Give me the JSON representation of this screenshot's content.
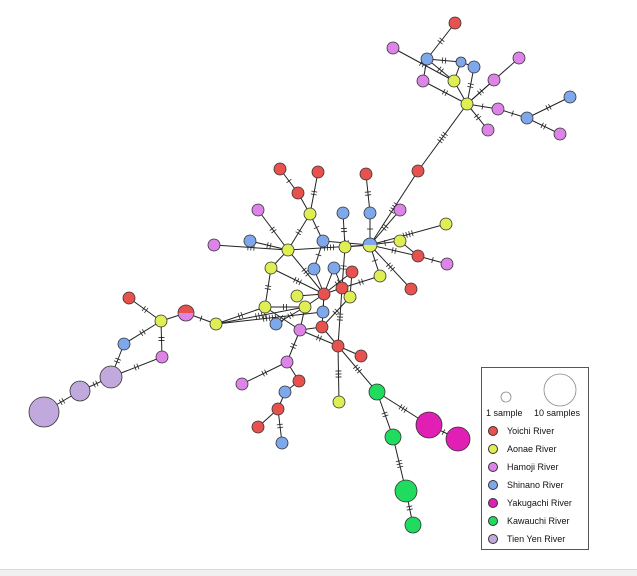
{
  "colors": {
    "yoichi": "#e8524e",
    "aonae": "#dfee53",
    "hamoji": "#de84e8",
    "shinano": "#7ea7ec",
    "yakugachi": "#e21fb4",
    "kawauchi": "#1fdc5f",
    "tienyen": "#c1a9dd"
  },
  "legend": {
    "size_small_label": "1 sample",
    "size_large_label": "10 samples",
    "entries": [
      {
        "label": "Yoichi River",
        "color": "#e8524e"
      },
      {
        "label": "Aonae River",
        "color": "#dfee53"
      },
      {
        "label": "Hamoji River",
        "color": "#de84e8"
      },
      {
        "label": "Shinano River",
        "color": "#7ea7ec"
      },
      {
        "label": "Yakugachi River",
        "color": "#e21fb4"
      },
      {
        "label": "Kawauchi River",
        "color": "#1fdc5f"
      },
      {
        "label": "Tien Yen River",
        "color": "#c1a9dd"
      }
    ]
  }
}
